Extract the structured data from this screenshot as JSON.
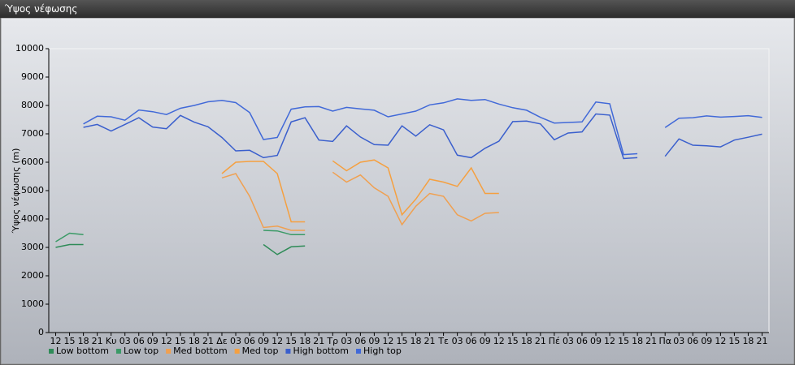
{
  "window_title": "Ύψος νέφωσης",
  "chart_data": {
    "type": "line",
    "y_label": "Ύψος νέφωσης (m)",
    "categories": [
      "12",
      "15",
      "18",
      "21",
      "Κυ",
      "03",
      "06",
      "09",
      "12",
      "15",
      "18",
      "21",
      "Δε",
      "03",
      "06",
      "09",
      "12",
      "15",
      "18",
      "21",
      "Τρ",
      "03",
      "06",
      "09",
      "12",
      "15",
      "18",
      "21",
      "Τε",
      "03",
      "06",
      "09",
      "12",
      "15",
      "18",
      "21",
      "Πέ",
      "03",
      "06",
      "09",
      "12",
      "15",
      "18",
      "21",
      "Πα",
      "03",
      "06",
      "09",
      "12",
      "15",
      "18",
      "21"
    ],
    "ylim": [
      0,
      10000
    ],
    "yticks": [
      0,
      1000,
      2000,
      3000,
      4000,
      5000,
      6000,
      7000,
      8000,
      9000,
      10000
    ],
    "legend": "bottom-left",
    "series": [
      {
        "name": "Low bottom",
        "color": "#2e8b57",
        "values": [
          3000,
          3100,
          3100,
          null,
          null,
          null,
          null,
          null,
          null,
          null,
          null,
          null,
          null,
          null,
          null,
          3100,
          2750,
          3020,
          3050,
          null,
          null,
          null,
          null,
          null,
          null,
          null,
          null,
          null,
          null,
          null,
          null,
          null,
          null,
          null,
          null,
          null,
          null,
          null,
          null,
          null,
          null,
          null,
          null,
          null,
          null,
          null,
          null,
          null,
          null,
          null,
          null,
          null
        ]
      },
      {
        "name": "Low top",
        "color": "#3a9a66",
        "values": [
          3200,
          3500,
          3450,
          null,
          null,
          null,
          null,
          null,
          null,
          null,
          null,
          null,
          null,
          null,
          null,
          3600,
          3580,
          3450,
          3450,
          null,
          null,
          null,
          null,
          null,
          null,
          null,
          null,
          null,
          null,
          null,
          null,
          null,
          null,
          null,
          null,
          null,
          null,
          null,
          null,
          null,
          null,
          null,
          null,
          null,
          null,
          null,
          null,
          null,
          null,
          null,
          null,
          null
        ]
      },
      {
        "name": "Med bottom",
        "color": "#f0a050",
        "values": [
          null,
          null,
          null,
          null,
          null,
          null,
          null,
          null,
          null,
          null,
          null,
          null,
          5450,
          5600,
          4800,
          3700,
          3750,
          3600,
          3600,
          null,
          5650,
          5300,
          5550,
          5100,
          4800,
          3800,
          4450,
          4900,
          4800,
          4150,
          3930,
          4200,
          4230,
          null,
          null,
          null,
          null,
          null,
          null,
          null,
          null,
          null,
          null,
          null,
          null,
          null,
          null,
          null,
          null,
          null,
          null,
          null
        ]
      },
      {
        "name": "Med top",
        "color": "#f5a040",
        "values": [
          null,
          null,
          null,
          null,
          null,
          null,
          null,
          null,
          null,
          null,
          null,
          null,
          5600,
          6000,
          6030,
          6030,
          5600,
          3900,
          3900,
          null,
          6050,
          5700,
          6000,
          6080,
          5800,
          4150,
          4700,
          5400,
          5300,
          5150,
          5800,
          4900,
          4900,
          null,
          null,
          null,
          null,
          null,
          null,
          null,
          null,
          null,
          null,
          null,
          null,
          null,
          null,
          null,
          null,
          null,
          null,
          null
        ]
      },
      {
        "name": "High bottom",
        "color": "#3a5fcd",
        "values": [
          null,
          null,
          7230,
          7330,
          7100,
          7330,
          7570,
          7240,
          7180,
          7650,
          7410,
          7250,
          6870,
          6400,
          6420,
          6160,
          6240,
          7420,
          7570,
          6780,
          6730,
          7280,
          6890,
          6620,
          6600,
          7280,
          6920,
          7320,
          7140,
          6250,
          6160,
          6490,
          6740,
          7430,
          7450,
          7350,
          6790,
          7030,
          7070,
          7700,
          7660,
          6130,
          6160,
          null,
          6210,
          6820,
          6600,
          6580,
          6540,
          6780,
          6880,
          6990
        ]
      },
      {
        "name": "High top",
        "color": "#4169d8",
        "values": [
          null,
          null,
          7350,
          7620,
          7600,
          7480,
          7840,
          7780,
          7680,
          7900,
          8000,
          8130,
          8180,
          8100,
          7750,
          6800,
          6870,
          7870,
          7950,
          7960,
          7800,
          7930,
          7880,
          7830,
          7600,
          7700,
          7800,
          8020,
          8090,
          8230,
          8180,
          8210,
          8050,
          7920,
          7830,
          7580,
          7380,
          7400,
          7420,
          8120,
          8060,
          6270,
          6300,
          null,
          7220,
          7550,
          7570,
          7630,
          7590,
          7610,
          7640,
          7580
        ]
      }
    ]
  }
}
